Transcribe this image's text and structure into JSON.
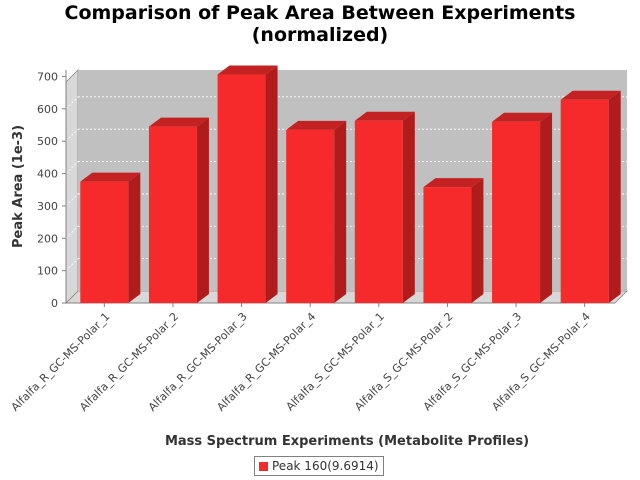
{
  "chart_data": {
    "type": "bar",
    "title_lines": [
      "Comparison of Peak Area Between Experiments",
      "(normalized)"
    ],
    "xlabel": "Mass Spectrum Experiments (Metabolite Profiles)",
    "ylabel": "Peak Area (1e-3)",
    "categories": [
      "Alfalfa_R_GC-MS-Polar_1",
      "Alfalfa_R_GC-MS-Polar_2",
      "Alfalfa_R_GC-MS-Polar_3",
      "Alfalfa_R_GC-MS-Polar_4",
      "Alfalfa_S_GC-MS-Polar_1",
      "Alfalfa_S_GC-MS-Polar_2",
      "Alfalfa_S_GC-MS-Polar_3",
      "Alfalfa_S_GC-MS-Polar_4"
    ],
    "series": [
      {
        "name": "Peak 160(9.6914)",
        "values": [
          375,
          545,
          706,
          535,
          563,
          358,
          560,
          628
        ]
      }
    ],
    "ylim": [
      0,
      720
    ],
    "yticks": [
      0,
      100,
      200,
      300,
      400,
      500,
      600,
      700
    ],
    "grid": true,
    "legend_position": "bottom",
    "colors": {
      "bar_front": "#f62a2a",
      "bar_top": "#c42222",
      "bar_side": "#b01c1c",
      "plot_background": "#c0c0c0",
      "plot_wall": "#d8d8d8",
      "gridline": "#ffffff"
    }
  }
}
